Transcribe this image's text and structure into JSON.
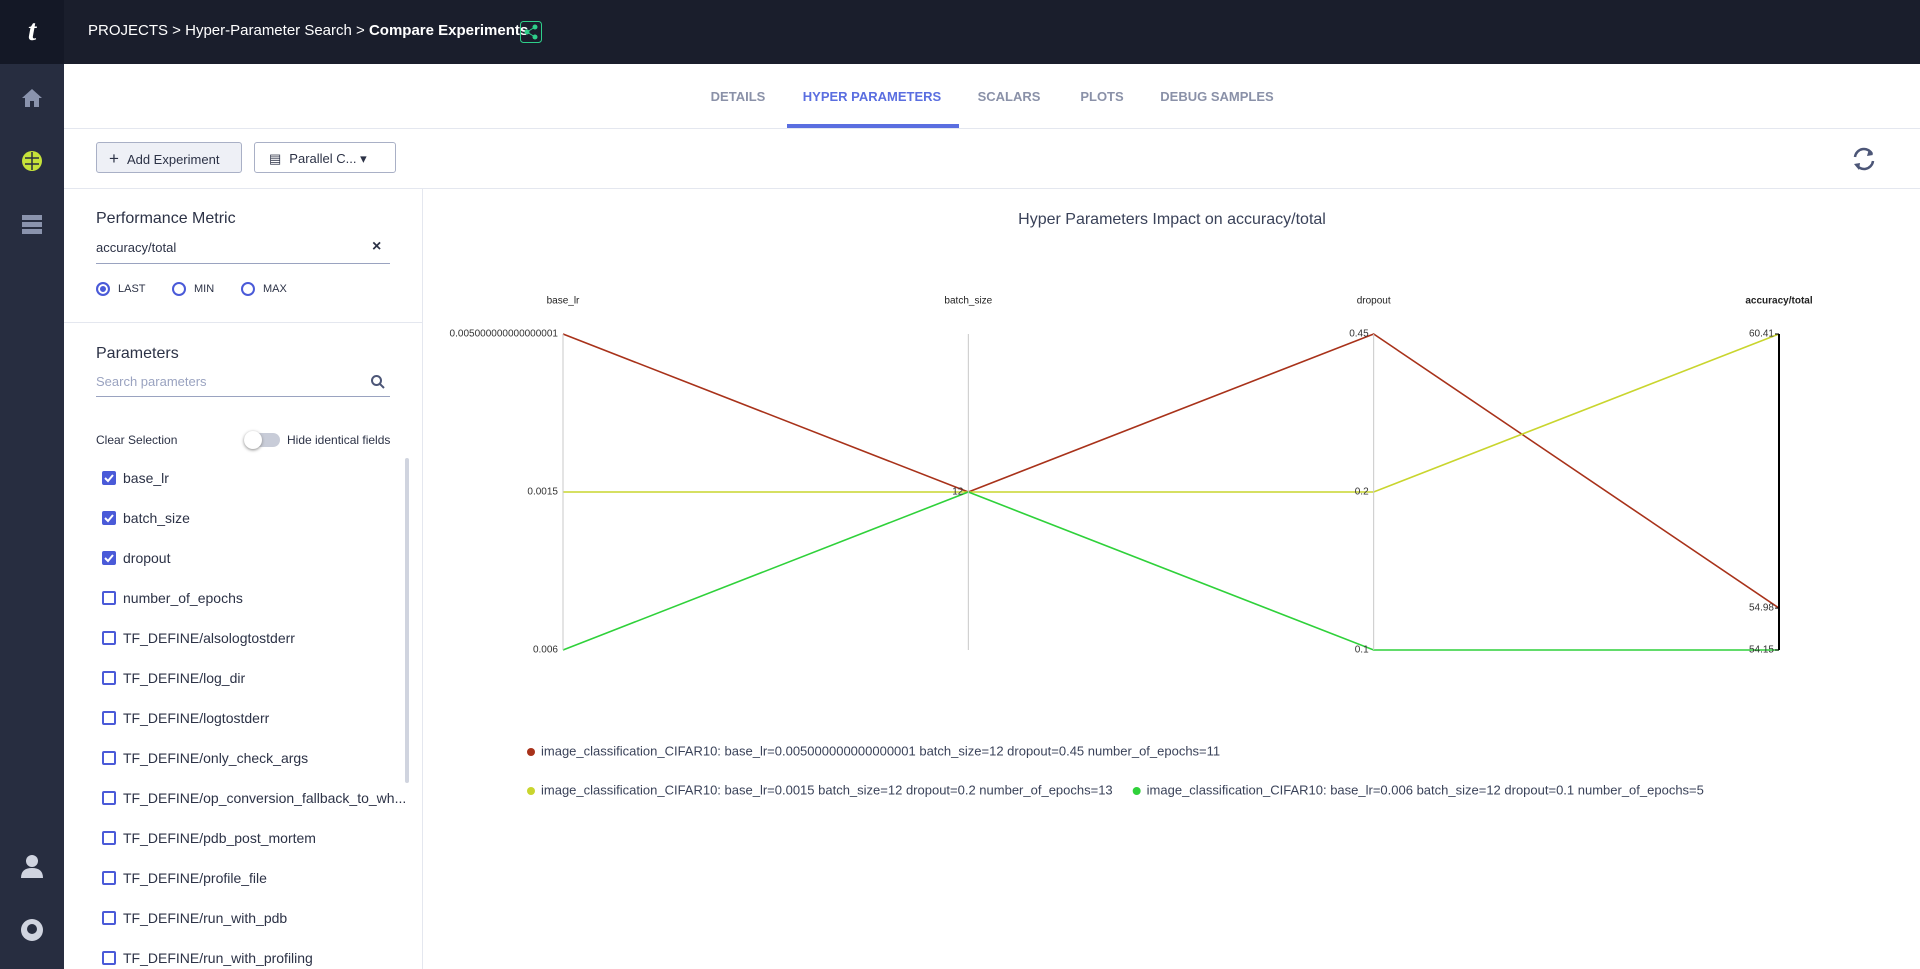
{
  "header": {
    "breadcrumb": [
      "PROJECTS",
      "Hyper-Parameter Search",
      "Compare Experiments"
    ]
  },
  "tabs": [
    {
      "label": "DETAILS",
      "active": false
    },
    {
      "label": "HYPER PARAMETERS",
      "active": true
    },
    {
      "label": "SCALARS",
      "active": false
    },
    {
      "label": "PLOTS",
      "active": false
    },
    {
      "label": "DEBUG SAMPLES",
      "active": false
    }
  ],
  "toolbar": {
    "add_experiment": "Add Experiment",
    "view_select": "Parallel C..."
  },
  "sidebar": {
    "metric_title": "Performance Metric",
    "metric_value": "accuracy/total",
    "options": [
      {
        "label": "LAST",
        "selected": true
      },
      {
        "label": "MIN",
        "selected": false
      },
      {
        "label": "MAX",
        "selected": false
      }
    ],
    "parameters_title": "Parameters",
    "search_placeholder": "Search parameters",
    "clear_selection": "Clear Selection",
    "hide_identical": "Hide identical fields",
    "parameters": [
      {
        "name": "base_lr",
        "checked": true
      },
      {
        "name": "batch_size",
        "checked": true
      },
      {
        "name": "dropout",
        "checked": true
      },
      {
        "name": "number_of_epochs",
        "checked": false
      },
      {
        "name": "TF_DEFINE/alsologtostderr",
        "checked": false
      },
      {
        "name": "TF_DEFINE/log_dir",
        "checked": false
      },
      {
        "name": "TF_DEFINE/logtostderr",
        "checked": false
      },
      {
        "name": "TF_DEFINE/only_check_args",
        "checked": false
      },
      {
        "name": "TF_DEFINE/op_conversion_fallback_to_wh...",
        "checked": false
      },
      {
        "name": "TF_DEFINE/pdb_post_mortem",
        "checked": false
      },
      {
        "name": "TF_DEFINE/profile_file",
        "checked": false
      },
      {
        "name": "TF_DEFINE/run_with_pdb",
        "checked": false
      },
      {
        "name": "TF_DEFINE/run_with_profiling",
        "checked": false
      }
    ]
  },
  "chart_data": {
    "type": "parallel",
    "title": "Hyper Parameters Impact on accuracy/total",
    "dimensions": [
      {
        "label": "base_lr",
        "categories": [
          "0.005000000000000001",
          "0.0015",
          "0.006"
        ]
      },
      {
        "label": "batch_size",
        "categories": [
          "12"
        ]
      },
      {
        "label": "dropout",
        "categories": [
          "0.45",
          "0.2",
          "0.1"
        ]
      },
      {
        "label": "accuracy/total",
        "ylim": [
          54.15,
          60.41
        ],
        "yticks": [
          60.41,
          54.98,
          54.15
        ]
      }
    ],
    "series": [
      {
        "name": "image_classification_CIFAR10: base_lr=0.005000000000000001 batch_size=12 dropout=0.45 number_of_epochs=11",
        "color": "#a8321a",
        "values": [
          "0.005000000000000001",
          "12",
          "0.45",
          54.98
        ]
      },
      {
        "name": "image_classification_CIFAR10: base_lr=0.0015 batch_size=12 dropout=0.2 number_of_epochs=13",
        "color": "#c9d52e",
        "values": [
          "0.0015",
          "12",
          "0.2",
          60.41
        ]
      },
      {
        "name": "image_classification_CIFAR10: base_lr=0.006 batch_size=12 dropout=0.1 number_of_epochs=5",
        "color": "#2fd13a",
        "values": [
          "0.006",
          "12",
          "0.1",
          54.15
        ]
      }
    ]
  }
}
